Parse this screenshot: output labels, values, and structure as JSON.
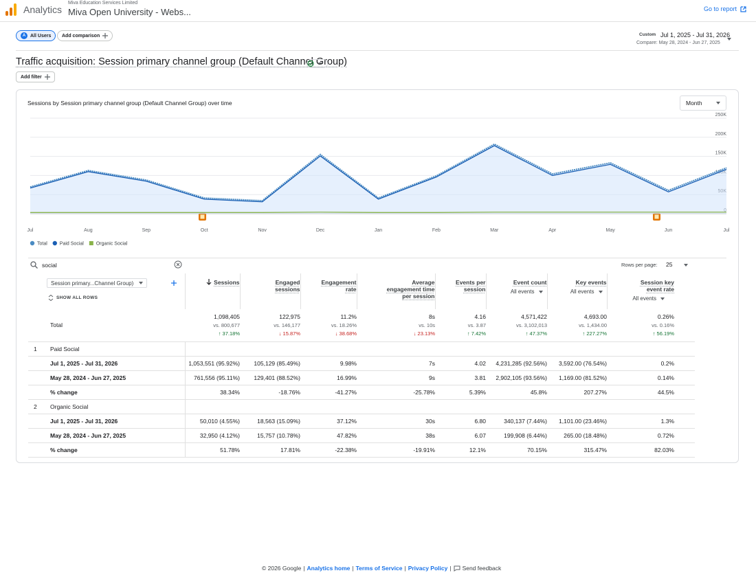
{
  "header": {
    "product": "Analytics",
    "account": "Miva Education Services Limited",
    "property": "Miva Open University - Webs...",
    "go_to_report": "Go to report"
  },
  "toolbar": {
    "segment_badge": "A",
    "segment": "All Users",
    "add_comparison": "Add comparison",
    "date_mode": "Custom",
    "date_range": "Jul 1, 2025 - Jul 31, 2026",
    "compare_range": "Compare: May 28, 2024 - Jun 27, 2025"
  },
  "report": {
    "title": "Traffic acquisition: Session primary channel group (Default Channel Group)",
    "add_filter": "Add filter",
    "granularity": "Month"
  },
  "chart_data": {
    "type": "line",
    "title": "Sessions by Session primary channel group (Default Channel Group) over time",
    "categories": [
      "Jul",
      "Aug",
      "Sep",
      "Oct",
      "Nov",
      "Dec",
      "Jan",
      "Feb",
      "Mar",
      "Apr",
      "May",
      "Jun",
      "Jul"
    ],
    "series": [
      {
        "name": "Total",
        "color": "#4a8bc2",
        "values": [
          70000,
          113000,
          88000,
          41000,
          34000,
          155000,
          41000,
          99000,
          182000,
          104000,
          133000,
          61000,
          120000
        ]
      },
      {
        "name": "Paid Social",
        "color": "#1a5fb4",
        "values": [
          67000,
          110000,
          85000,
          38000,
          31000,
          151000,
          38000,
          96000,
          178000,
          100000,
          129000,
          57000,
          116000
        ]
      },
      {
        "name": "Organic Social",
        "color": "#8ab34a",
        "values": [
          3000,
          3000,
          3000,
          3000,
          3000,
          4000,
          3000,
          3000,
          4000,
          4000,
          4000,
          4000,
          4000
        ]
      }
    ],
    "ylim": [
      0,
      250000
    ],
    "yticks": [
      0,
      {
        "value": 50000,
        "label": "50K"
      },
      {
        "value": 100000,
        "label": "100K"
      },
      {
        "value": 150000,
        "label": "150K"
      },
      {
        "value": 200000,
        "label": "200K"
      },
      {
        "value": 250000,
        "label": "250K"
      }
    ],
    "grid": true,
    "legend": "bottom-left"
  },
  "table_controls": {
    "search": "social",
    "rows_per_page_label": "Rows per page:",
    "rows_per_page": "25"
  },
  "table": {
    "dimension": "Session primary...Channel Group)",
    "show_all_rows": "SHOW ALL ROWS",
    "columns": [
      {
        "label": "Sessions"
      },
      {
        "label": "Engaged sessions"
      },
      {
        "label": "Engagement rate"
      },
      {
        "label": "Average engagement time per session"
      },
      {
        "label": "Events per session"
      },
      {
        "label": "Event count",
        "filter": "All events"
      },
      {
        "label": "Key events",
        "filter": "All events"
      },
      {
        "label": "Session key event rate",
        "filter": "All events"
      }
    ],
    "total": {
      "label": "Total",
      "values": [
        "1,098,405",
        "122,975",
        "11.2%",
        "8s",
        "4.16",
        "4,571,422",
        "4,693.00",
        "0.26%"
      ],
      "compare": [
        "vs. 800,677",
        "vs. 146,177",
        "vs. 18.26%",
        "vs. 10s",
        "vs. 3.87",
        "vs. 3,102,013",
        "vs. 1,434.00",
        "vs. 0.16%"
      ],
      "change": [
        "↑ 37.18%",
        "↓ 15.87%",
        "↓ 38.68%",
        "↓ 23.13%",
        "↑ 7.42%",
        "↑ 47.37%",
        "↑ 227.27%",
        "↑ 56.19%"
      ]
    },
    "groups": [
      {
        "index": "1",
        "name": "Paid Social",
        "rows": [
          {
            "label": "Jul 1, 2025 - Jul 31, 2026",
            "values": [
              "1,053,551 (95.92%)",
              "105,129 (85.49%)",
              "9.98%",
              "7s",
              "4.02",
              "4,231,285 (92.56%)",
              "3,592.00 (76.54%)",
              "0.2%"
            ]
          },
          {
            "label": "May 28, 2024 - Jun 27, 2025",
            "values": [
              "761,556 (95.11%)",
              "129,401 (88.52%)",
              "16.99%",
              "9s",
              "3.81",
              "2,902,105 (93.56%)",
              "1,169.00 (81.52%)",
              "0.14%"
            ]
          },
          {
            "label": "% change",
            "values": [
              "38.34%",
              "-18.76%",
              "-41.27%",
              "-25.78%",
              "5.39%",
              "45.8%",
              "207.27%",
              "44.5%"
            ]
          }
        ]
      },
      {
        "index": "2",
        "name": "Organic Social",
        "rows": [
          {
            "label": "Jul 1, 2025 - Jul 31, 2026",
            "values": [
              "50,010 (4.55%)",
              "18,563 (15.09%)",
              "37.12%",
              "30s",
              "6.80",
              "340,137 (7.44%)",
              "1,101.00 (23.46%)",
              "1.3%"
            ]
          },
          {
            "label": "May 28, 2024 - Jun 27, 2025",
            "values": [
              "32,950 (4.12%)",
              "15,757 (10.78%)",
              "47.82%",
              "38s",
              "6.07",
              "199,908 (6.44%)",
              "265.00 (18.48%)",
              "0.72%"
            ]
          },
          {
            "label": "% change",
            "values": [
              "51.78%",
              "17.81%",
              "-22.38%",
              "-19.91%",
              "12.1%",
              "70.15%",
              "315.47%",
              "82.03%"
            ]
          }
        ]
      }
    ]
  },
  "footer": {
    "copyright": "© 2026 Google",
    "links": [
      "Analytics home",
      "Terms of Service",
      "Privacy Policy"
    ],
    "feedback": "Send feedback"
  }
}
